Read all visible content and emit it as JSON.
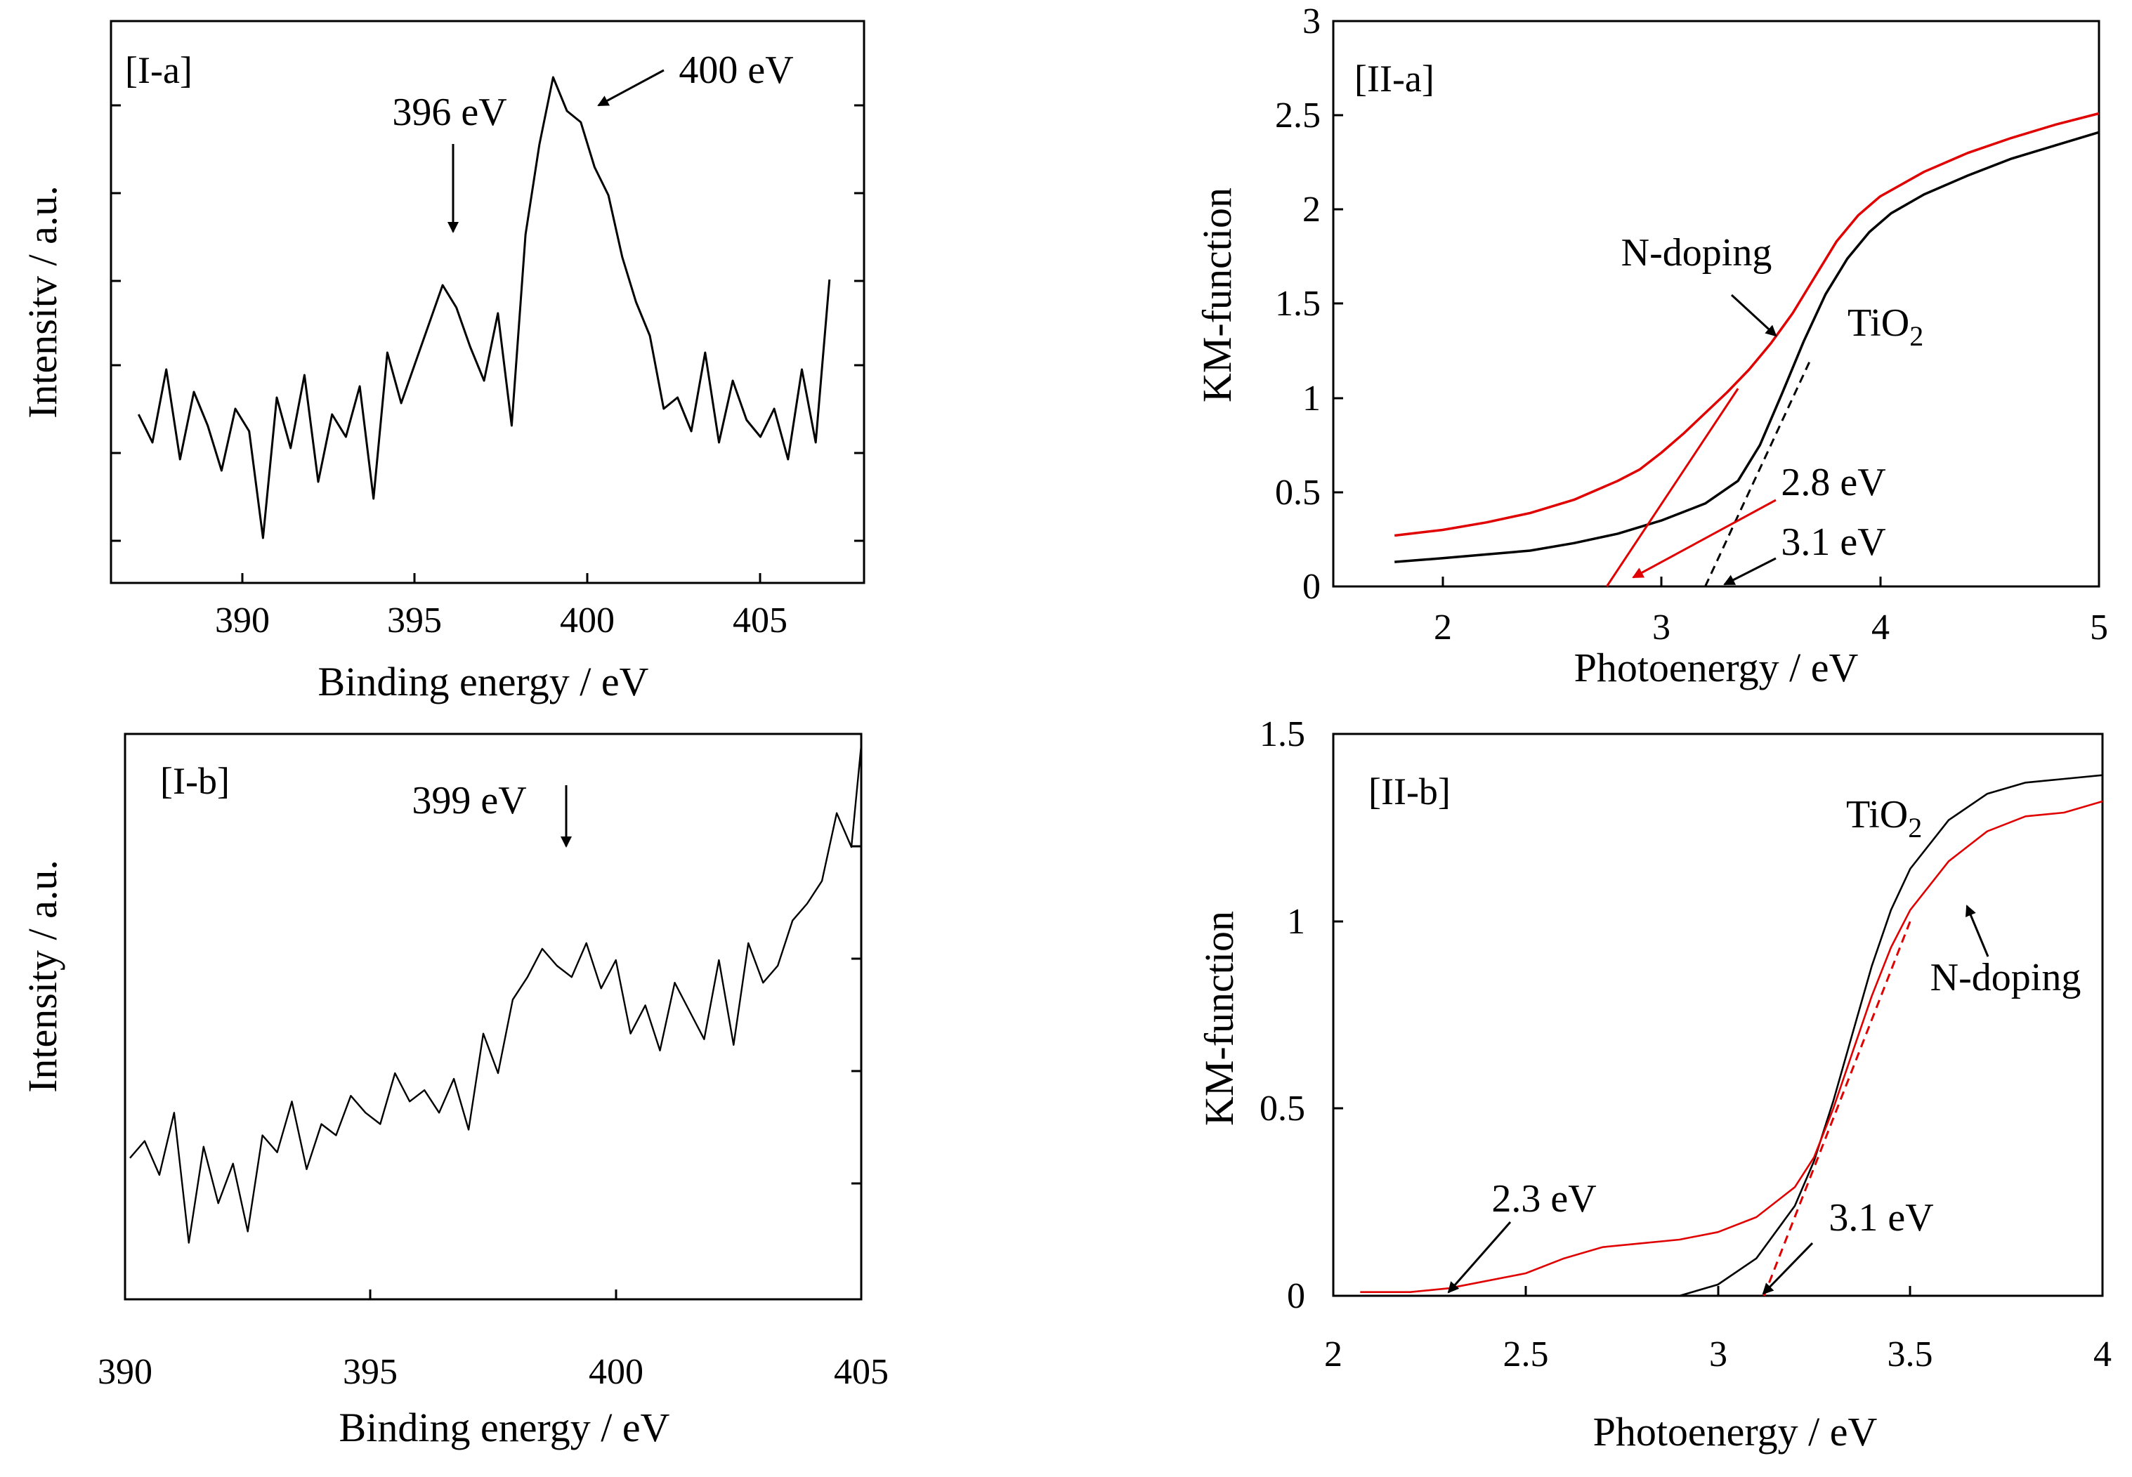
{
  "chart_data": [
    {
      "id": "I-a",
      "type": "line",
      "panel_label": "[I-a]",
      "xlabel": "Binding energy / eV",
      "ylabel": "Intensitv / a.u.",
      "xlim": [
        386.2,
        408.0
      ],
      "ylim": [
        0,
        100
      ],
      "x_ticks": [
        390,
        395,
        400,
        405
      ],
      "x_ticks_text": [
        "390",
        "395",
        "400",
        "405"
      ],
      "y_tick_labels_shown": false,
      "grid": false,
      "colors": {
        "main": "#000000"
      },
      "series": [
        {
          "color": "#000000",
          "x": [
            387.0,
            387.4,
            387.8,
            388.2,
            388.6,
            389.0,
            389.4,
            389.8,
            390.2,
            390.6,
            391.0,
            391.4,
            391.8,
            392.2,
            392.6,
            393.0,
            393.4,
            393.8,
            394.2,
            394.6,
            395.0,
            395.4,
            395.8,
            396.2,
            396.6,
            397.0,
            397.4,
            397.8,
            398.2,
            398.6,
            399.0,
            399.4,
            399.8,
            400.2,
            400.6,
            401.0,
            401.4,
            401.8,
            402.2,
            402.6,
            403.0,
            403.4,
            403.8,
            404.2,
            404.6,
            405.0,
            405.4,
            405.8,
            406.2,
            406.6,
            407.0
          ],
          "y": [
            30,
            25,
            38,
            22,
            34,
            28,
            20,
            31,
            27,
            8,
            33,
            24,
            37,
            18,
            30,
            26,
            35,
            15,
            41,
            32,
            39,
            46,
            53,
            49,
            42,
            36,
            48,
            28,
            62,
            78,
            90,
            84,
            82,
            74,
            69,
            58,
            50,
            44,
            31,
            33,
            27,
            41,
            25,
            36,
            29,
            26,
            31,
            22,
            38,
            25,
            54
          ]
        }
      ],
      "annotations": [
        {
          "text": "396 eV",
          "x": 396.0,
          "y": 62
        },
        {
          "text": "400 eV",
          "x": 400.2,
          "y": 86
        }
      ]
    },
    {
      "id": "I-b",
      "type": "line",
      "panel_label": "[I-b]",
      "xlabel": "Binding energy / eV",
      "ylabel": "Intensity / a.u.",
      "xlim": [
        390,
        405
      ],
      "ylim": [
        0,
        100
      ],
      "x_ticks": [
        390,
        395,
        400,
        405
      ],
      "x_ticks_text": [
        "390",
        "395",
        "400",
        "405"
      ],
      "y_tick_labels_shown": false,
      "grid": false,
      "colors": {
        "main": "#000000"
      },
      "series": [
        {
          "color": "#000000",
          "x": [
            390.1,
            390.4,
            390.7,
            391.0,
            391.3,
            391.6,
            391.9,
            392.2,
            392.5,
            392.8,
            393.1,
            393.4,
            393.7,
            394.0,
            394.3,
            394.6,
            394.9,
            395.2,
            395.5,
            395.8,
            396.1,
            396.4,
            396.7,
            397.0,
            397.3,
            397.6,
            397.9,
            398.2,
            398.5,
            398.8,
            399.1,
            399.4,
            399.7,
            400.0,
            400.3,
            400.6,
            400.9,
            401.2,
            401.5,
            401.8,
            402.1,
            402.4,
            402.7,
            403.0,
            403.3,
            403.6,
            403.9,
            404.2,
            404.5,
            404.8,
            405.0
          ],
          "y": [
            25,
            28,
            22,
            33,
            10,
            27,
            17,
            24,
            12,
            29,
            26,
            35,
            23,
            31,
            29,
            36,
            33,
            31,
            40,
            35,
            37,
            33,
            39,
            30,
            47,
            40,
            53,
            57,
            62,
            59,
            57,
            63,
            55,
            60,
            47,
            52,
            44,
            56,
            51,
            46,
            60,
            45,
            63,
            56,
            59,
            67,
            70,
            74,
            86,
            80,
            98
          ]
        }
      ],
      "annotations": [
        {
          "text": "399 eV",
          "x": 399.1,
          "y": 78
        }
      ]
    },
    {
      "id": "II-a",
      "type": "line",
      "panel_label": "[II-a]",
      "xlabel": "Photoenergy / eV",
      "ylabel": "KM-function",
      "xlim": [
        1.5,
        5.0
      ],
      "ylim": [
        0,
        3
      ],
      "x_ticks": [
        2,
        3,
        4,
        5
      ],
      "x_ticks_text": [
        "2",
        "3",
        "4",
        "5"
      ],
      "y_ticks": [
        0,
        0.5,
        1,
        1.5,
        2,
        2.5,
        3
      ],
      "y_ticks_text": [
        "0",
        "0.5",
        "1",
        "1.5",
        "2",
        "2.5",
        "3"
      ],
      "grid": false,
      "colors": {
        "tio2": "#000000",
        "n_doping": "#e00000"
      },
      "series": [
        {
          "color": "#000000",
          "x": [
            1.78,
            2.0,
            2.2,
            2.4,
            2.6,
            2.8,
            3.0,
            3.2,
            3.35,
            3.45,
            3.55,
            3.65,
            3.75,
            3.85,
            3.95,
            4.05,
            4.2,
            4.4,
            4.6,
            4.8,
            5.0
          ],
          "y": [
            0.13,
            0.15,
            0.17,
            0.19,
            0.23,
            0.28,
            0.35,
            0.44,
            0.56,
            0.75,
            1.02,
            1.3,
            1.55,
            1.74,
            1.88,
            1.98,
            2.08,
            2.18,
            2.27,
            2.34,
            2.41
          ]
        },
        {
          "color": "#e00000",
          "x": [
            1.78,
            2.0,
            2.2,
            2.4,
            2.6,
            2.8,
            2.9,
            3.0,
            3.1,
            3.2,
            3.3,
            3.4,
            3.5,
            3.6,
            3.7,
            3.8,
            3.9,
            4.0,
            4.2,
            4.4,
            4.6,
            4.8,
            5.0
          ],
          "y": [
            0.27,
            0.3,
            0.34,
            0.39,
            0.46,
            0.56,
            0.62,
            0.71,
            0.81,
            0.92,
            1.03,
            1.15,
            1.29,
            1.45,
            1.64,
            1.83,
            1.97,
            2.07,
            2.2,
            2.3,
            2.38,
            2.45,
            2.51
          ]
        }
      ],
      "fits": [
        {
          "color": "#e00000",
          "dash": false,
          "x": [
            2.75,
            3.35
          ],
          "y": [
            0.0,
            1.05
          ]
        },
        {
          "color": "#000000",
          "dash": true,
          "x": [
            3.2,
            3.68
          ],
          "y": [
            0.0,
            1.2
          ]
        }
      ],
      "annotations": [
        {
          "text": "N-doping",
          "x": 3.2,
          "y": 1.78,
          "color": "#000000"
        },
        {
          "text": "TiO2",
          "x": 3.85,
          "y": 1.35,
          "color": "#000000"
        },
        {
          "text": "2.8 eV",
          "x": 3.6,
          "y": 0.52,
          "color": "#000000"
        },
        {
          "text": "3.1 eV",
          "x": 3.55,
          "y": 0.22,
          "color": "#000000"
        }
      ]
    },
    {
      "id": "II-b",
      "type": "line",
      "panel_label": "[II-b]",
      "xlabel": "Photoenergy / eV",
      "ylabel": "KM-function",
      "xlim": [
        2.0,
        4.0
      ],
      "ylim": [
        0,
        1.5
      ],
      "x_ticks": [
        2,
        2.5,
        3,
        3.5,
        4
      ],
      "x_ticks_text": [
        "2",
        "2.5",
        "3",
        "3.5",
        "4"
      ],
      "y_ticks": [
        0,
        0.5,
        1,
        1.5
      ],
      "y_ticks_text": [
        "0",
        "0.5",
        "1",
        "1.5"
      ],
      "grid": false,
      "colors": {
        "tio2": "#000000",
        "n_doping": "#e00000"
      },
      "series": [
        {
          "color": "#000000",
          "x": [
            2.9,
            3.0,
            3.1,
            3.2,
            3.25,
            3.3,
            3.35,
            3.4,
            3.45,
            3.5,
            3.6,
            3.7,
            3.8,
            3.9,
            4.0
          ],
          "y": [
            0.0,
            0.03,
            0.1,
            0.24,
            0.36,
            0.52,
            0.7,
            0.88,
            1.03,
            1.14,
            1.27,
            1.34,
            1.37,
            1.38,
            1.39
          ]
        },
        {
          "color": "#e00000",
          "x": [
            2.07,
            2.2,
            2.3,
            2.4,
            2.5,
            2.6,
            2.7,
            2.8,
            2.9,
            3.0,
            3.1,
            3.2,
            3.25,
            3.3,
            3.35,
            3.4,
            3.45,
            3.5,
            3.6,
            3.7,
            3.8,
            3.9,
            4.0
          ],
          "y": [
            0.01,
            0.01,
            0.02,
            0.04,
            0.06,
            0.1,
            0.13,
            0.14,
            0.15,
            0.17,
            0.21,
            0.29,
            0.37,
            0.5,
            0.65,
            0.8,
            0.93,
            1.03,
            1.16,
            1.24,
            1.28,
            1.29,
            1.32
          ]
        }
      ],
      "fits": [
        {
          "color": "#e00000",
          "dash": true,
          "x": [
            3.12,
            3.5
          ],
          "y": [
            0.0,
            1.0
          ]
        }
      ],
      "annotations": [
        {
          "text": "TiO2",
          "x": 3.46,
          "y": 1.31,
          "color": "#000000"
        },
        {
          "text": "N-doping",
          "x": 3.75,
          "y": 0.87,
          "color": "#000000"
        },
        {
          "text": "2.3 eV",
          "x": 2.5,
          "y": 0.26,
          "color": "#000000"
        },
        {
          "text": "3.1 eV",
          "x": 3.42,
          "y": 0.2,
          "color": "#000000"
        }
      ]
    }
  ]
}
